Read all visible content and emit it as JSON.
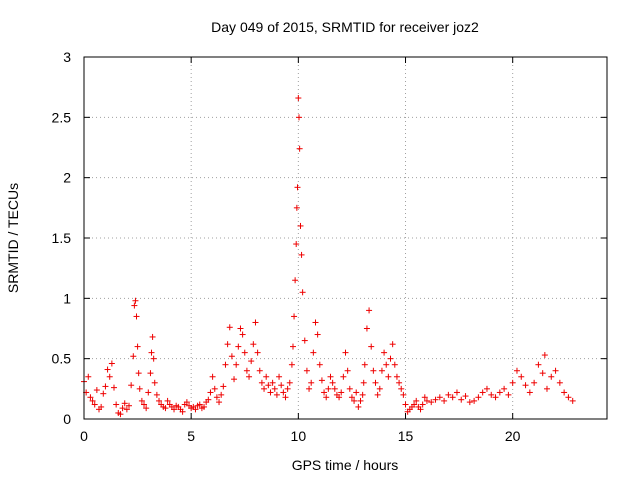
{
  "chart_data": {
    "type": "scatter",
    "title": "Day 049 of 2015, SRMTID for receiver joz2",
    "xlabel": "GPS time / hours",
    "ylabel": "SRMTID / TECUs",
    "xlim": [
      0,
      24.4
    ],
    "ylim": [
      0,
      3
    ],
    "xticks": [
      0,
      5,
      10,
      15,
      20
    ],
    "xtick_labels": [
      "0",
      "5",
      "10",
      "15",
      "20"
    ],
    "yticks": [
      0,
      0.5,
      1,
      1.5,
      2,
      2.5,
      3
    ],
    "ytick_labels": [
      "0",
      "0.5",
      "1",
      "1.5",
      "2",
      "2.5",
      "3"
    ],
    "grid": true,
    "marker": "plus",
    "series": [
      {
        "name": "joz2",
        "color": "#ee0000",
        "x": [
          0.0,
          0.1,
          0.2,
          0.3,
          0.4,
          0.5,
          0.6,
          0.7,
          0.8,
          0.9,
          1.0,
          1.1,
          1.2,
          1.3,
          1.4,
          1.5,
          1.6,
          1.7,
          1.8,
          1.9,
          2.0,
          2.1,
          2.2,
          2.3,
          2.35,
          2.4,
          2.45,
          2.5,
          2.55,
          2.6,
          2.7,
          2.8,
          2.9,
          3.0,
          3.1,
          3.15,
          3.2,
          3.25,
          3.3,
          3.4,
          3.5,
          3.6,
          3.7,
          3.8,
          3.9,
          4.0,
          4.1,
          4.2,
          4.3,
          4.4,
          4.5,
          4.6,
          4.7,
          4.8,
          4.9,
          5.0,
          5.1,
          5.2,
          5.3,
          5.4,
          5.5,
          5.6,
          5.7,
          5.8,
          5.9,
          6.0,
          6.1,
          6.2,
          6.3,
          6.4,
          6.5,
          6.6,
          6.7,
          6.8,
          6.9,
          7.0,
          7.1,
          7.2,
          7.3,
          7.4,
          7.5,
          7.6,
          7.7,
          7.8,
          7.9,
          8.0,
          8.1,
          8.2,
          8.3,
          8.4,
          8.5,
          8.6,
          8.7,
          8.8,
          8.9,
          9.0,
          9.1,
          9.2,
          9.3,
          9.4,
          9.5,
          9.6,
          9.7,
          9.75,
          9.8,
          9.85,
          9.9,
          9.93,
          9.96,
          10.0,
          10.03,
          10.06,
          10.1,
          10.15,
          10.2,
          10.3,
          10.4,
          10.5,
          10.6,
          10.7,
          10.8,
          10.9,
          11.0,
          11.1,
          11.2,
          11.3,
          11.4,
          11.5,
          11.6,
          11.7,
          11.8,
          11.9,
          12.0,
          12.1,
          12.2,
          12.3,
          12.4,
          12.5,
          12.6,
          12.7,
          12.8,
          12.9,
          13.0,
          13.05,
          13.1,
          13.2,
          13.3,
          13.4,
          13.5,
          13.6,
          13.7,
          13.8,
          13.9,
          14.0,
          14.1,
          14.2,
          14.3,
          14.4,
          14.5,
          14.6,
          14.7,
          14.8,
          14.9,
          15.0,
          15.1,
          15.2,
          15.3,
          15.4,
          15.5,
          15.6,
          15.7,
          15.8,
          15.9,
          16.0,
          16.2,
          16.4,
          16.6,
          16.8,
          17.0,
          17.2,
          17.4,
          17.6,
          17.8,
          18.0,
          18.2,
          18.4,
          18.6,
          18.8,
          19.0,
          19.2,
          19.4,
          19.6,
          19.8,
          20.0,
          20.2,
          20.4,
          20.6,
          20.8,
          21.0,
          21.2,
          21.4,
          21.5,
          21.6,
          21.8,
          22.0,
          22.2,
          22.4,
          22.6,
          22.8
        ],
        "y": [
          0.31,
          0.22,
          0.35,
          0.18,
          0.15,
          0.12,
          0.24,
          0.08,
          0.1,
          0.21,
          0.27,
          0.41,
          0.35,
          0.46,
          0.26,
          0.12,
          0.05,
          0.04,
          0.09,
          0.13,
          0.08,
          0.11,
          0.28,
          0.52,
          0.94,
          0.98,
          0.85,
          0.6,
          0.38,
          0.25,
          0.15,
          0.12,
          0.09,
          0.22,
          0.38,
          0.55,
          0.68,
          0.5,
          0.3,
          0.2,
          0.15,
          0.12,
          0.1,
          0.09,
          0.15,
          0.12,
          0.1,
          0.08,
          0.11,
          0.1,
          0.08,
          0.06,
          0.12,
          0.14,
          0.11,
          0.09,
          0.1,
          0.08,
          0.11,
          0.12,
          0.09,
          0.1,
          0.14,
          0.16,
          0.22,
          0.35,
          0.25,
          0.18,
          0.14,
          0.2,
          0.27,
          0.45,
          0.62,
          0.76,
          0.52,
          0.33,
          0.45,
          0.6,
          0.75,
          0.7,
          0.55,
          0.4,
          0.35,
          0.48,
          0.62,
          0.8,
          0.55,
          0.4,
          0.3,
          0.25,
          0.35,
          0.28,
          0.22,
          0.3,
          0.25,
          0.2,
          0.35,
          0.28,
          0.22,
          0.18,
          0.25,
          0.3,
          0.45,
          0.6,
          0.85,
          1.15,
          1.45,
          1.75,
          1.92,
          2.66,
          2.5,
          2.24,
          1.6,
          1.36,
          1.05,
          0.65,
          0.4,
          0.25,
          0.3,
          0.55,
          0.8,
          0.7,
          0.45,
          0.32,
          0.22,
          0.18,
          0.25,
          0.35,
          0.3,
          0.25,
          0.2,
          0.18,
          0.22,
          0.35,
          0.55,
          0.4,
          0.25,
          0.18,
          0.15,
          0.22,
          0.1,
          0.15,
          0.2,
          0.3,
          0.45,
          0.75,
          0.9,
          0.6,
          0.4,
          0.3,
          0.2,
          0.25,
          0.4,
          0.55,
          0.45,
          0.35,
          0.5,
          0.62,
          0.45,
          0.35,
          0.3,
          0.25,
          0.2,
          0.12,
          0.06,
          0.08,
          0.1,
          0.12,
          0.15,
          0.1,
          0.08,
          0.12,
          0.18,
          0.15,
          0.14,
          0.16,
          0.18,
          0.15,
          0.2,
          0.18,
          0.22,
          0.16,
          0.19,
          0.14,
          0.15,
          0.18,
          0.22,
          0.25,
          0.2,
          0.18,
          0.22,
          0.25,
          0.2,
          0.3,
          0.4,
          0.35,
          0.28,
          0.22,
          0.3,
          0.45,
          0.38,
          0.53,
          0.25,
          0.35,
          0.4,
          0.3,
          0.22,
          0.18,
          0.15
        ]
      }
    ]
  }
}
